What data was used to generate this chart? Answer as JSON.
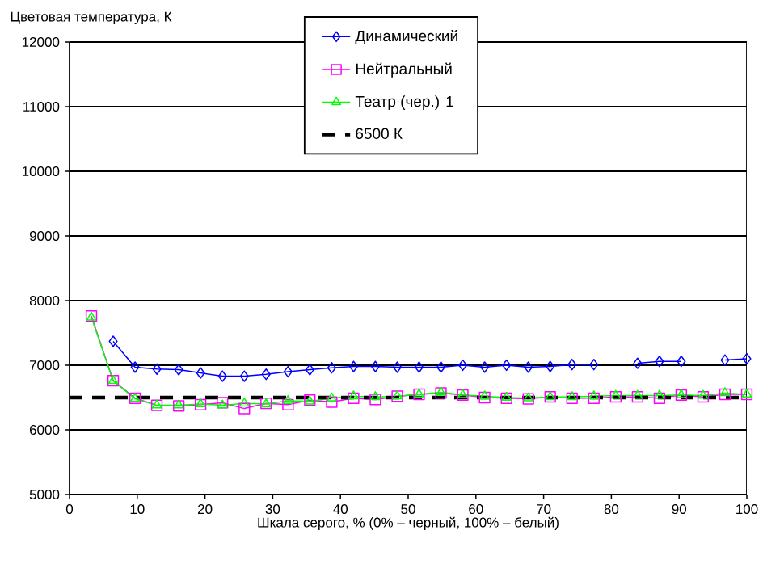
{
  "chart_data": {
    "type": "line",
    "ylabel": "Цветовая температура, К",
    "xlabel": "Шкала серого, % (0% – черный, 100% – белый)",
    "x": [
      3.23,
      6.45,
      9.68,
      12.9,
      16.13,
      19.35,
      22.58,
      25.81,
      29.03,
      32.26,
      35.48,
      38.71,
      41.94,
      45.16,
      48.39,
      51.61,
      54.84,
      58.06,
      61.29,
      64.52,
      67.74,
      70.97,
      74.19,
      77.42,
      80.65,
      83.87,
      87.1,
      90.32,
      93.55,
      96.77,
      100
    ],
    "series": [
      {
        "name": "Динамический",
        "color": "#0000ff",
        "marker": "diamond",
        "values": [
          null,
          7370,
          6970,
          6940,
          6930,
          6880,
          6830,
          6830,
          6860,
          6900,
          6930,
          6960,
          6980,
          6980,
          6970,
          6970,
          6970,
          7000,
          6970,
          7000,
          6970,
          6980,
          7010,
          7010,
          null,
          7030,
          7060,
          7060,
          null,
          7080,
          7100
        ]
      },
      {
        "name": "Нейтральный",
        "color": "#ff00ff",
        "marker": "square",
        "values": [
          7760,
          6760,
          6490,
          6380,
          6370,
          6390,
          6420,
          6330,
          6410,
          6390,
          6460,
          6430,
          6490,
          6470,
          6520,
          6550,
          6570,
          6540,
          6500,
          6490,
          6480,
          6510,
          6490,
          6490,
          6510,
          6510,
          6490,
          6540,
          6510,
          6550,
          6550
        ]
      },
      {
        "name": "Театр (чер.) 1",
        "color": "#00ff00",
        "marker": "triangle",
        "values": [
          7740,
          6760,
          6480,
          6380,
          6380,
          6400,
          6380,
          6410,
          6400,
          6450,
          6440,
          6490,
          6520,
          6510,
          6520,
          6550,
          6580,
          6540,
          6520,
          6500,
          6490,
          6510,
          6510,
          6520,
          6530,
          6530,
          6530,
          6540,
          6530,
          6570,
          6550
        ]
      }
    ],
    "ref_lines": [
      {
        "axis": "y",
        "value": 6500,
        "label": "6500 К",
        "color": "#000000",
        "line_style": "dashed"
      }
    ],
    "xlim": [
      0,
      100
    ],
    "ylim": [
      5000,
      12000
    ],
    "xticks": [
      0,
      10,
      20,
      30,
      40,
      50,
      60,
      70,
      80,
      90,
      100
    ],
    "yticks": [
      5000,
      6000,
      7000,
      8000,
      9000,
      10000,
      11000,
      12000
    ],
    "grid": "y",
    "legend": "top"
  }
}
